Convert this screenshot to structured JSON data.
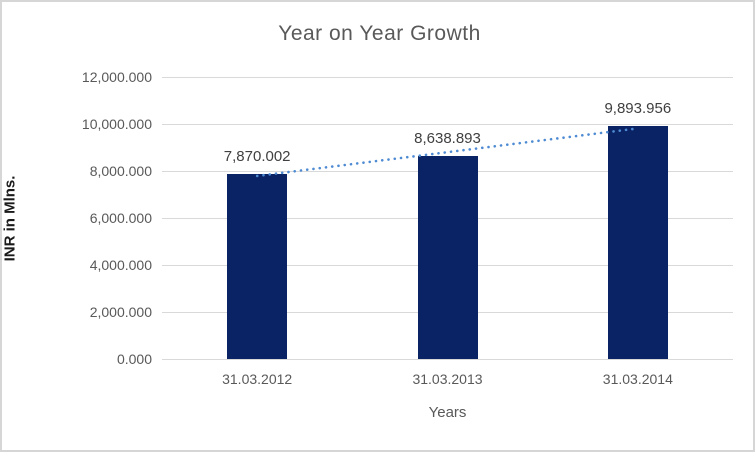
{
  "chart_data": {
    "type": "bar",
    "title": "Year on Year Growth",
    "xlabel": "Years",
    "ylabel": "INR in Mlns.",
    "categories": [
      "31.03.2012",
      "31.03.2013",
      "31.03.2014"
    ],
    "values": [
      7870.002,
      8638.893,
      9893.956
    ],
    "data_labels": [
      "7,870.002",
      "8,638.893",
      "9,893.956"
    ],
    "ylim": [
      0,
      12000
    ],
    "ytick_step": 2000,
    "ytick_labels": [
      "0.000",
      "2,000.000",
      "4,000.000",
      "6,000.000",
      "8,000.000",
      "10,000.000",
      "12,000.000"
    ],
    "grid": true,
    "legend": false,
    "trendline": {
      "type": "linear",
      "style": "dotted",
      "values": [
        7788.97,
        8800.95,
        9812.93
      ]
    },
    "colors": {
      "bar": "#0a2365",
      "trendline": "#4e8bd3",
      "gridline": "#d9d9d9",
      "title": "#595959",
      "tick_label": "#595959",
      "data_label": "#404040",
      "y_axis_title": "#1a1a1a",
      "frame_border": "#d6d6d6",
      "background": "#ffffff"
    }
  }
}
